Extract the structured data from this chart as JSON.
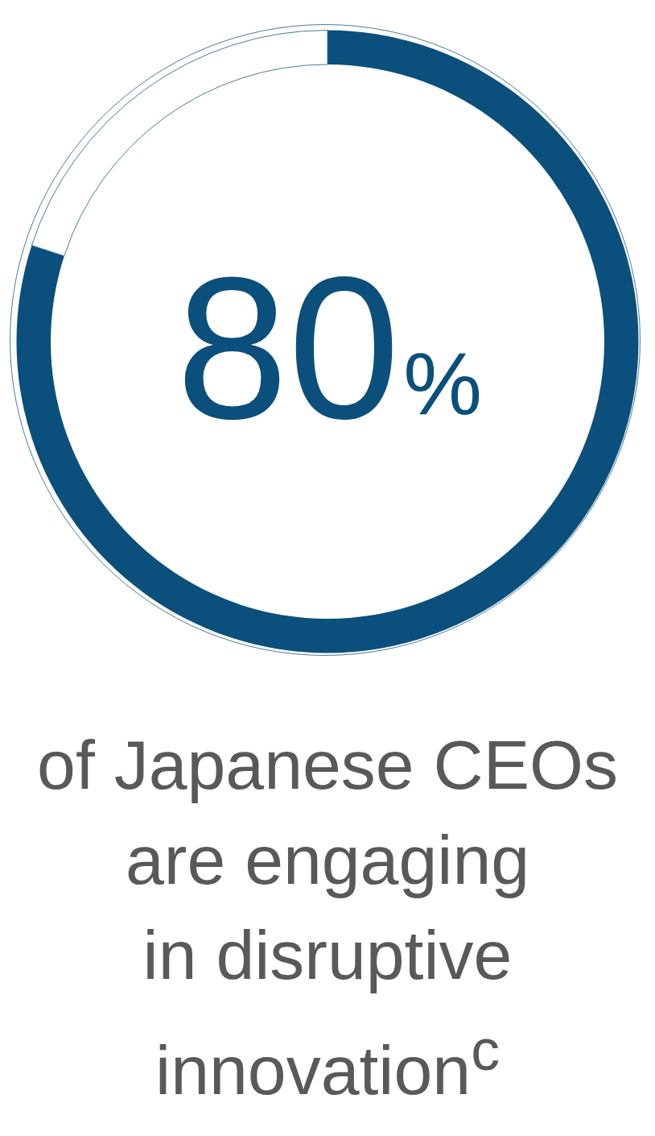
{
  "chart_data": {
    "type": "donut",
    "title": "of Japanese CEOs\nare engaging\nin disruptive\ninnovation$^{c}$",
    "categories": [
      null,
      null
    ],
    "values": [
      80,
      20
    ],
    "colors": [
      "#0b4f7c",
      "#ffffff"
    ],
    "value_labels": [
      "80%",
      null
    ],
    "legend": false
  }
}
